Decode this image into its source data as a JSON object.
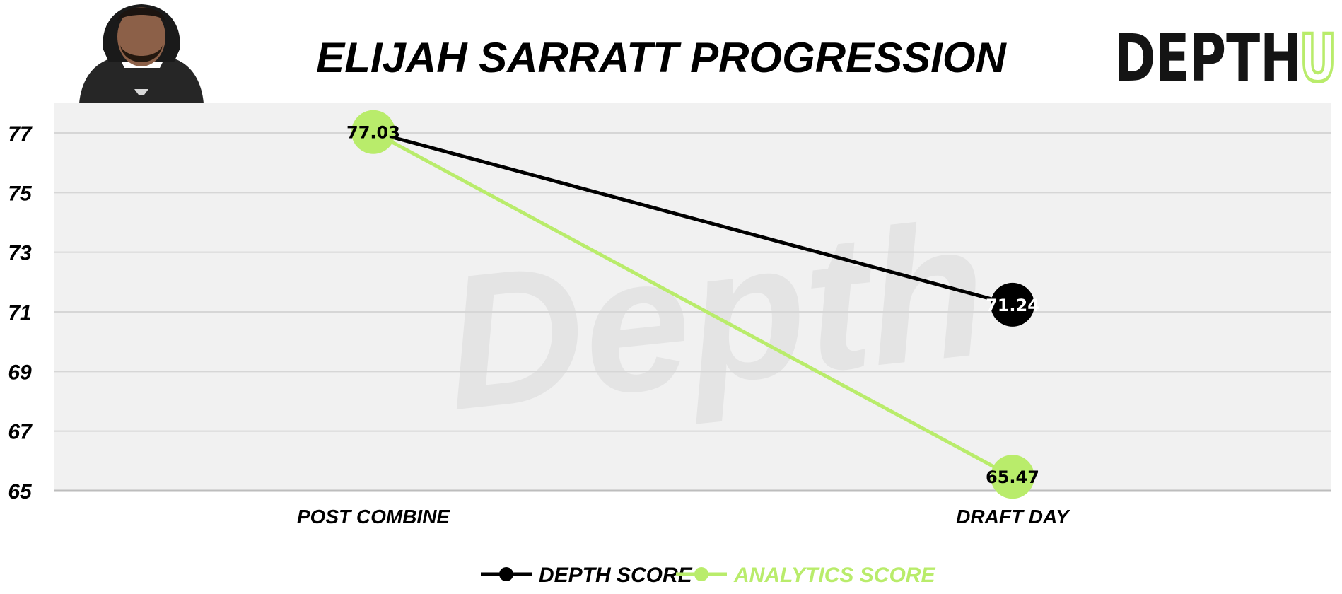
{
  "brand": {
    "prefix": "DEPTH",
    "suffix": "U",
    "watermark": "Depth"
  },
  "colors": {
    "accent": "#b9ec6b",
    "dark": "#000000",
    "plot_bg": "#f1f1f1",
    "grid": "#d6d6d6"
  },
  "icons": {
    "player_photo": "player-headshot",
    "legend_marker": "line-dot-marker"
  },
  "chart_data": {
    "type": "line",
    "title": "ELIJAH SARRATT PROGRESSION",
    "categories": [
      "POST COMBINE",
      "DRAFT DAY"
    ],
    "yticks": [
      65,
      67,
      69,
      71,
      73,
      75,
      77
    ],
    "ylim": [
      65,
      78
    ],
    "grid": true,
    "legend": "bottom-center",
    "series": [
      {
        "name": "DEPTH SCORE",
        "color": "#000000",
        "values": [
          77.03,
          71.24
        ],
        "labels": [
          "77.03",
          "71.24"
        ]
      },
      {
        "name": "ANALYTICS SCORE",
        "color": "#b9ec6b",
        "values": [
          77.03,
          65.47
        ],
        "labels": [
          "77.03",
          "65.47"
        ]
      }
    ]
  }
}
